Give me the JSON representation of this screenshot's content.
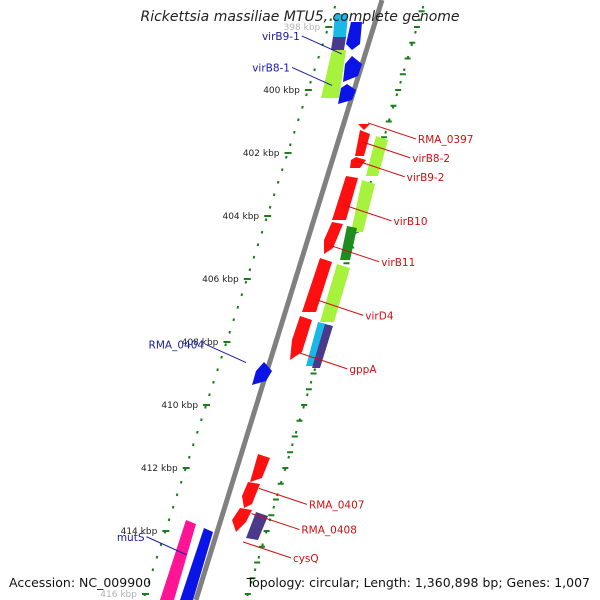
{
  "title": "Rickettsia massiliae MTU5, complete genome",
  "accession": "Accession: NC_009900",
  "topology": "Topology: circular; Length: 1,360,898 bp; Genes: 1,007",
  "colors": {
    "backbone": "#7f7f7f",
    "ticks": "#1b7d1b",
    "forward_label": "#1a1aa6",
    "reverse_label": "#cc1111",
    "red": "#ff1010",
    "blue": "#0a14e6",
    "lime": "#a6f23c",
    "dark_green": "#1e8c1e",
    "cyan": "#19b8e6",
    "purple": "#4a3a8c",
    "magenta": "#ff1493"
  },
  "ticks": [
    {
      "label": "398 kbp",
      "kbp": 398,
      "faded": true
    },
    {
      "label": "400 kbp",
      "kbp": 400
    },
    {
      "label": "402 kbp",
      "kbp": 402
    },
    {
      "label": "404 kbp",
      "kbp": 404
    },
    {
      "label": "406 kbp",
      "kbp": 406
    },
    {
      "label": "408 kbp",
      "kbp": 408
    },
    {
      "label": "410 kbp",
      "kbp": 410
    },
    {
      "label": "412 kbp",
      "kbp": 412
    },
    {
      "label": "414 kbp",
      "kbp": 414
    },
    {
      "label": "416 kbp",
      "kbp": 416,
      "faded": true
    }
  ],
  "gene_labels": [
    {
      "name": "virB9-1",
      "strand": "forward",
      "kbp": 398.6
    },
    {
      "name": "virB8-1",
      "strand": "forward",
      "kbp": 399.6
    },
    {
      "name": "RMA_0404",
      "strand": "forward",
      "kbp": 408.4
    },
    {
      "name": "mutS",
      "strand": "forward",
      "kbp": 414.5
    },
    {
      "name": "RMA_0397",
      "strand": "reverse",
      "kbp": 401.3
    },
    {
      "name": "virB8-2",
      "strand": "reverse",
      "kbp": 401.9
    },
    {
      "name": "virB9-2",
      "strand": "reverse",
      "kbp": 402.5
    },
    {
      "name": "virB10",
      "strand": "reverse",
      "kbp": 403.9
    },
    {
      "name": "virB11",
      "strand": "reverse",
      "kbp": 405.2
    },
    {
      "name": "virD4",
      "strand": "reverse",
      "kbp": 406.9
    },
    {
      "name": "gppA",
      "strand": "reverse",
      "kbp": 408.6
    },
    {
      "name": "RMA_0407",
      "strand": "reverse",
      "kbp": 412.9
    },
    {
      "name": "RMA_0408",
      "strand": "reverse",
      "kbp": 413.7
    },
    {
      "name": "cysQ",
      "strand": "reverse",
      "kbp": 414.6
    }
  ]
}
